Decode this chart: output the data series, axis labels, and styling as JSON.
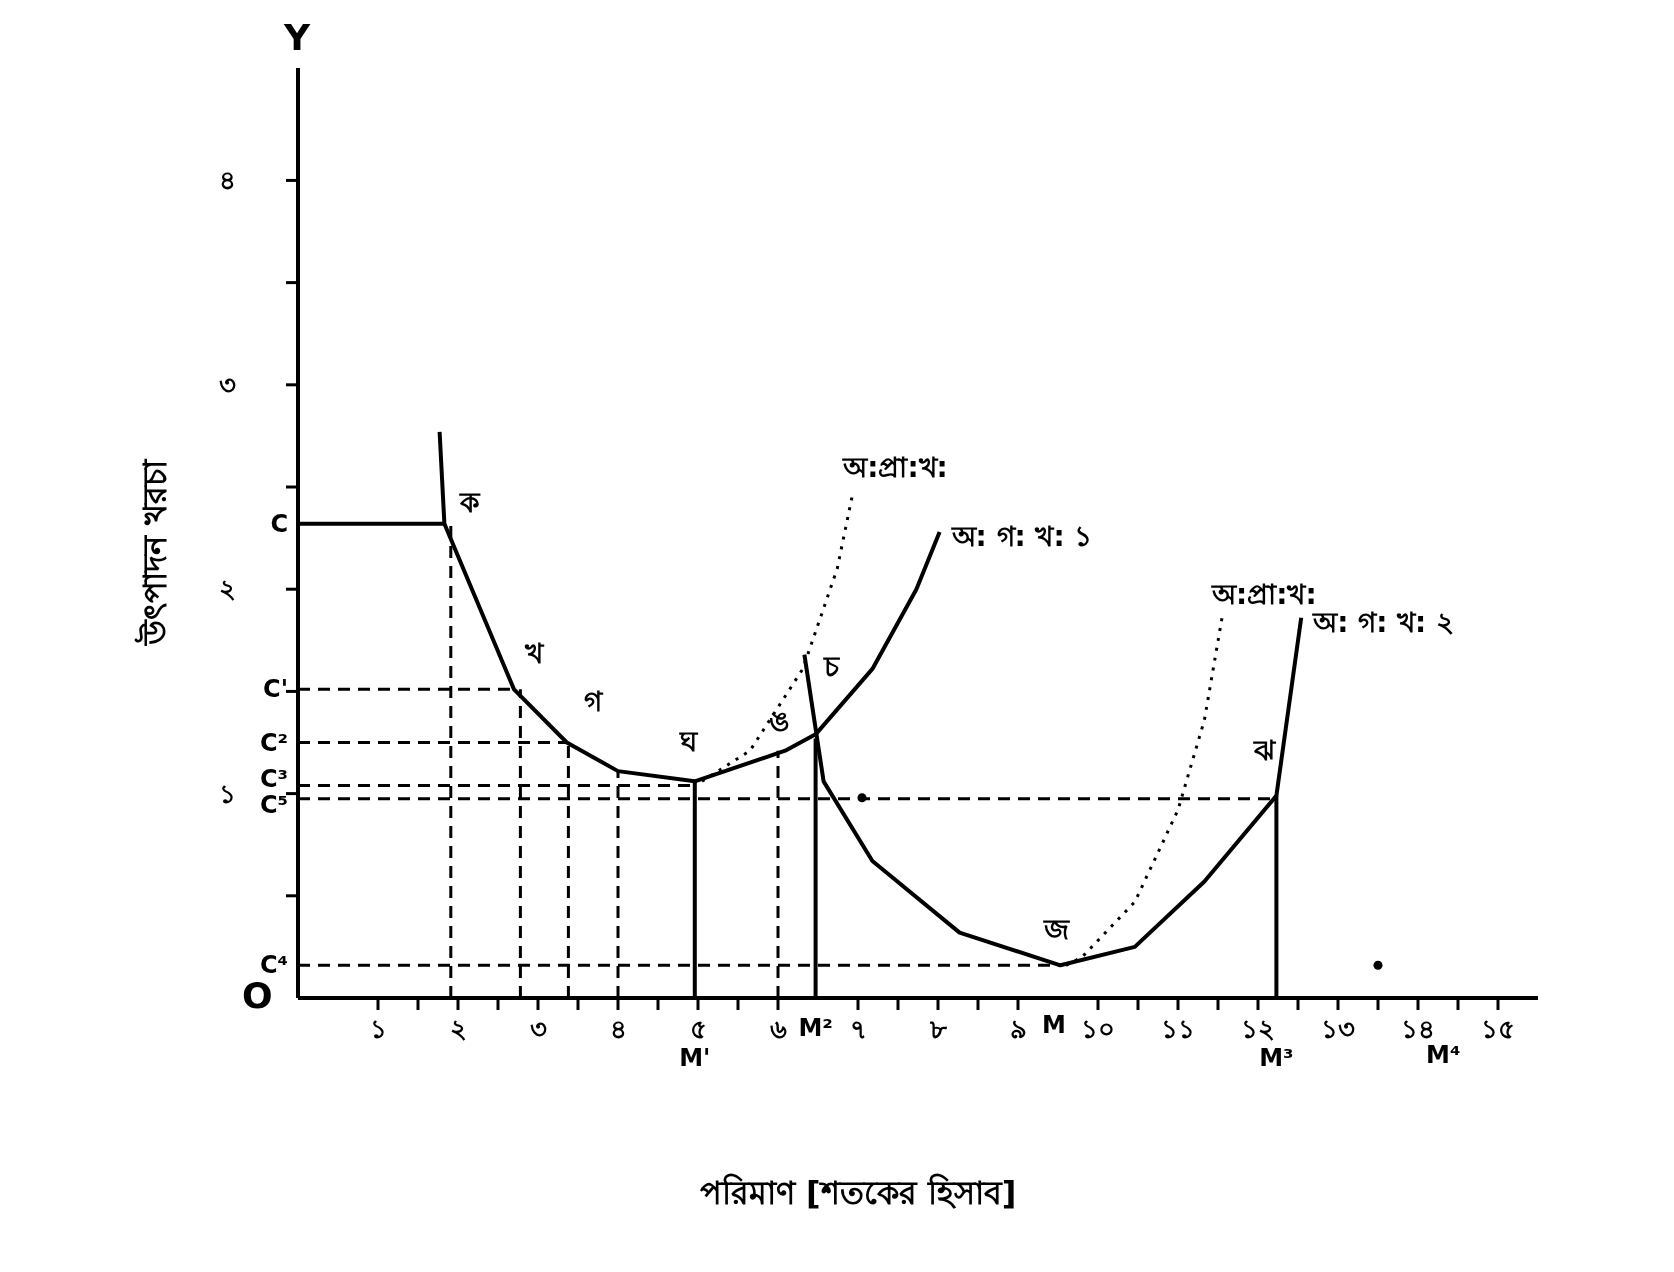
{
  "chart_data": {
    "type": "line",
    "xlabel": "পরিমাণ [শতকের হিসাব]",
    "ylabel": "উৎপাদন খরচা",
    "marker": "none",
    "grid": false,
    "legend": false,
    "xlim": [
      0,
      15.5
    ],
    "ylim": [
      0,
      4.55
    ],
    "xticks": [
      {
        "value": 1,
        "label": "১"
      },
      {
        "value": 2,
        "label": "২"
      },
      {
        "value": 3,
        "label": "৩"
      },
      {
        "value": 4,
        "label": "৪"
      },
      {
        "value": 5,
        "label": "৫"
      },
      {
        "value": 6,
        "label": "৬"
      },
      {
        "value": 7,
        "label": "৭"
      },
      {
        "value": 8,
        "label": "৮"
      },
      {
        "value": 9,
        "label": "৯"
      },
      {
        "value": 10,
        "label": "১০"
      },
      {
        "value": 11,
        "label": "১১"
      },
      {
        "value": 12,
        "label": "১২"
      },
      {
        "value": 13,
        "label": "১৩"
      },
      {
        "value": 14,
        "label": "১৪"
      },
      {
        "value": 15,
        "label": "১৫"
      },
      {
        "value": 1.5,
        "label": null
      },
      {
        "value": 2.5,
        "label": null
      },
      {
        "value": 3.5,
        "label": null
      },
      {
        "value": 4.5,
        "label": null
      },
      {
        "value": 5.5,
        "label": null
      },
      {
        "value": 7.5,
        "label": null
      },
      {
        "value": 8.5,
        "label": null
      },
      {
        "value": 10.5,
        "label": null
      },
      {
        "value": 11.5,
        "label": null
      },
      {
        "value": 12.5,
        "label": null
      },
      {
        "value": 13.5,
        "label": null
      },
      {
        "value": 14.5,
        "label": null
      }
    ],
    "yticks": [
      {
        "value": 1,
        "label": "১"
      },
      {
        "value": 2,
        "label": "২"
      },
      {
        "value": 3,
        "label": "৩"
      },
      {
        "value": 4,
        "label": "৪"
      },
      {
        "value": 0.5,
        "label": null
      },
      {
        "value": 1.5,
        "label": null
      },
      {
        "value": 2.5,
        "label": null
      },
      {
        "value": 3.5,
        "label": null
      }
    ],
    "series": [
      {
        "name": "অ: গ: খ: ১",
        "color": "#000000",
        "line_style": "solid",
        "x": [
          1.77,
          1.83,
          2.7,
          3.36,
          4.0,
          4.96,
          6.09,
          6.47,
          7.18,
          7.73,
          8.02
        ],
        "values": [
          2.77,
          2.32,
          1.51,
          1.25,
          1.11,
          1.06,
          1.21,
          1.29,
          1.61,
          2.0,
          2.28
        ]
      },
      {
        "name": "অ:প্রা:খ:",
        "color": "#000000",
        "line_style": "dotted",
        "x": [
          5.05,
          5.65,
          6.31,
          6.74,
          6.94
        ],
        "values": [
          1.06,
          1.21,
          1.61,
          2.1,
          2.48
        ]
      },
      {
        "name": "অ: গ: খ: ২",
        "color": "#000000",
        "line_style": "solid",
        "x": [
          6.33,
          6.57,
          7.18,
          8.27,
          9.53,
          10.46,
          11.33,
          12.23,
          12.54
        ],
        "values": [
          1.68,
          1.06,
          0.67,
          0.32,
          0.16,
          0.25,
          0.57,
          0.99,
          1.86
        ]
      },
      {
        "name": "অ:প্রা:খ:",
        "color": "#000000",
        "line_style": "dotted",
        "x": [
          9.6,
          9.8,
          10.46,
          11.0,
          11.33,
          11.55
        ],
        "values": [
          0.16,
          0.2,
          0.47,
          0.92,
          1.36,
          1.86
        ]
      },
      {
        "color": "#000000",
        "line_style": "solid",
        "x": [
          0,
          1.83
        ],
        "values": [
          2.32,
          2.32
        ]
      },
      {
        "color": "#000000",
        "line_style": "dashed",
        "x": [
          0,
          2.7
        ],
        "values": [
          1.51,
          1.51
        ]
      },
      {
        "color": "#000000",
        "line_style": "dashed",
        "x": [
          0,
          3.36
        ],
        "values": [
          1.25,
          1.25
        ]
      },
      {
        "color": "#000000",
        "line_style": "dashed",
        "x": [
          0,
          4.96
        ],
        "values": [
          1.04,
          1.04
        ]
      },
      {
        "color": "#000000",
        "line_style": "dashed",
        "x": [
          0,
          12.23
        ],
        "values": [
          0.975,
          0.975
        ]
      },
      {
        "color": "#000000",
        "line_style": "dashed",
        "x": [
          0,
          9.53
        ],
        "values": [
          0.16,
          0.16
        ]
      },
      {
        "color": "#000000",
        "line_style": "dashed",
        "x": [
          1.91,
          1.91
        ],
        "values": [
          0,
          2.32
        ]
      },
      {
        "color": "#000000",
        "line_style": "dashed",
        "x": [
          2.78,
          2.78
        ],
        "values": [
          0,
          1.51
        ]
      },
      {
        "color": "#000000",
        "line_style": "dashed",
        "x": [
          3.38,
          3.38
        ],
        "values": [
          0,
          1.25
        ]
      },
      {
        "color": "#000000",
        "line_style": "dashed",
        "x": [
          4.0,
          4.0
        ],
        "values": [
          0,
          1.11
        ]
      },
      {
        "color": "#000000",
        "line_style": "dashed",
        "x": [
          6.0,
          6.0
        ],
        "values": [
          0,
          1.21
        ]
      },
      {
        "color": "#000000",
        "line_style": "solid",
        "x": [
          4.96,
          4.96
        ],
        "values": [
          0,
          1.06
        ]
      },
      {
        "color": "#000000",
        "line_style": "solid",
        "x": [
          6.47,
          6.47
        ],
        "values": [
          0,
          1.27
        ]
      },
      {
        "color": "#000000",
        "line_style": "solid",
        "x": [
          12.23,
          12.23
        ],
        "values": [
          0,
          0.99
        ]
      },
      {
        "type": "scatter",
        "color": "#000000",
        "marker": "circle",
        "x": [
          7.05,
          13.5
        ],
        "values": [
          0.98,
          0.16
        ]
      }
    ],
    "annotations": [
      {
        "text": "ক",
        "x": 1.83,
        "y": 2.32
      },
      {
        "text": "খ",
        "x": 2.7,
        "y": 1.51
      },
      {
        "text": "গ",
        "x": 3.36,
        "y": 1.25
      },
      {
        "text": "ঘ",
        "x": 4.96,
        "y": 1.06
      },
      {
        "text": "ঙ",
        "x": 6.09,
        "y": 1.21
      },
      {
        "text": "চ",
        "x": 6.47,
        "y": 1.29
      },
      {
        "text": "জ",
        "x": 9.53,
        "y": 0.16
      },
      {
        "text": "ঝ",
        "x": 12.23,
        "y": 0.99
      },
      {
        "text": "C",
        "x": 0,
        "y": 2.32
      },
      {
        "text": "C'",
        "x": 0,
        "y": 1.51
      },
      {
        "text": "C²",
        "x": 0,
        "y": 1.25
      },
      {
        "text": "C³",
        "x": 0,
        "y": 1.04
      },
      {
        "text": "C⁵",
        "x": 0,
        "y": 0.975
      },
      {
        "text": "C⁴",
        "x": 0,
        "y": 0.16
      },
      {
        "text": "M'",
        "x": 4.96,
        "y": 0
      },
      {
        "text": "M²",
        "x": 6.47,
        "y": 0
      },
      {
        "text": "M³",
        "x": 12.23,
        "y": 0
      },
      "M",
      "M⁴",
      "O",
      "Y"
    ]
  }
}
